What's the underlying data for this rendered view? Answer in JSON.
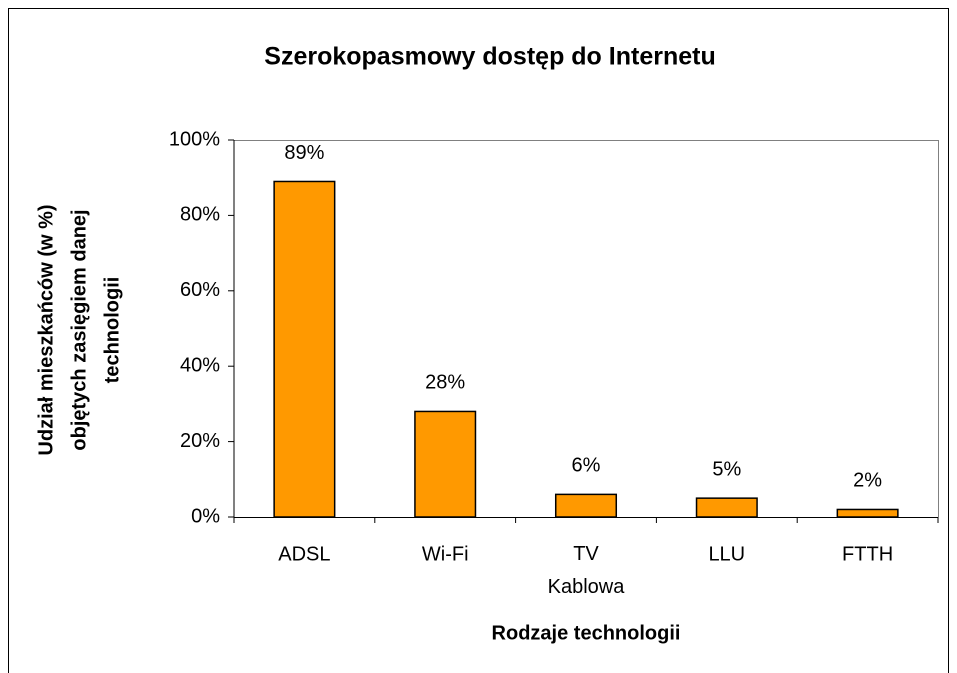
{
  "chart_data": {
    "type": "bar",
    "title": "Szerokopasmowy dostęp do Internetu",
    "xlabel": "Rodzaje technologii",
    "ylabel": [
      "Udział mieszkańców (w %)",
      "objętych zasięgiem danej",
      "technologii"
    ],
    "categories": [
      "ADSL",
      "Wi-Fi",
      "TV Kablowa",
      "LLU",
      "FTTH"
    ],
    "values": [
      89,
      28,
      6,
      5,
      2
    ],
    "value_labels": [
      "89%",
      "28%",
      "6%",
      "5%",
      "2%"
    ],
    "color": "#ff9900",
    "ylim": [
      0,
      100
    ],
    "yticks": [
      {
        "value": 0,
        "label": "0%"
      },
      {
        "value": 20,
        "label": "20%"
      },
      {
        "value": 40,
        "label": "40%"
      },
      {
        "value": 60,
        "label": "60%"
      },
      {
        "value": 80,
        "label": "80%"
      },
      {
        "value": 100,
        "label": "100%"
      }
    ]
  }
}
